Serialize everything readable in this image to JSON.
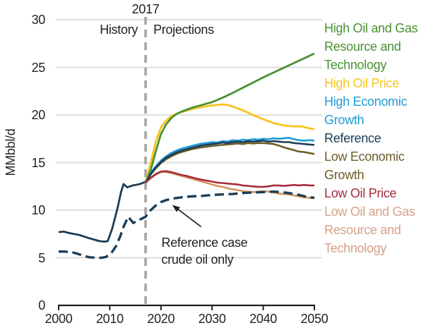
{
  "chart_data": {
    "type": "line",
    "title": "",
    "xlabel": "",
    "ylabel": "MMbbl/d",
    "xlim": [
      2000,
      2050
    ],
    "ylim": [
      0,
      30
    ],
    "x_ticks": [
      "2000",
      "2010",
      "2020",
      "2030",
      "2040",
      "2050"
    ],
    "y_ticks": [
      "0",
      "5",
      "10",
      "15",
      "20",
      "25",
      "30"
    ],
    "grid": "horizontal-only",
    "legend_position": "right",
    "divider": {
      "year": 2017,
      "label": "2017",
      "left": "History",
      "right": "Projections"
    },
    "annotation": {
      "line1": "Reference case",
      "line2": "crude oil only",
      "anchor_year": 2020.1,
      "anchor_value": 7.45,
      "target_year": 2022.2,
      "target_value": 10.55
    },
    "legend": [
      {
        "label": "High Oil and Gas Resource and Technology",
        "color": "#4a9132"
      },
      {
        "label": "High Oil Price",
        "color": "#f7c31e"
      },
      {
        "label": "High Economic Growth",
        "color": "#1f9bd7"
      },
      {
        "label": "Reference",
        "color": "#1c3d56"
      },
      {
        "label": "Low Economic Growth",
        "color": "#6a5e29"
      },
      {
        "label": "Low Oil Price",
        "color": "#a52c3d"
      },
      {
        "label": "Low Oil and Gas Resource and Technology",
        "color": "#d6a186"
      }
    ],
    "series": [
      {
        "name": "History total petroleum and other liquids",
        "color": "#1c3d56",
        "width": 2.8,
        "dashed": false,
        "points": [
          [
            2000,
            7.7
          ],
          [
            2001,
            7.75
          ],
          [
            2002,
            7.6
          ],
          [
            2004,
            7.4
          ],
          [
            2006,
            7.05
          ],
          [
            2007,
            6.9
          ],
          [
            2008,
            6.75
          ],
          [
            2009,
            6.7
          ],
          [
            2009.6,
            6.75
          ],
          [
            2010.5,
            8.1
          ],
          [
            2011.5,
            10.2
          ],
          [
            2012.2,
            11.9
          ],
          [
            2012.7,
            12.75
          ],
          [
            2013.4,
            12.4
          ],
          [
            2014.5,
            12.6
          ],
          [
            2015.5,
            12.7
          ],
          [
            2016.2,
            12.8
          ],
          [
            2017,
            13.0
          ]
        ]
      },
      {
        "name": "High Oil Price",
        "color": "#f7c31e",
        "width": 2.8,
        "dashed": false,
        "points": [
          [
            2017,
            12.9
          ],
          [
            2018,
            15.0
          ],
          [
            2019,
            17.2
          ],
          [
            2020,
            18.7
          ],
          [
            2021,
            19.4
          ],
          [
            2022,
            19.85
          ],
          [
            2023,
            20.1
          ],
          [
            2024,
            20.3
          ],
          [
            2026,
            20.6
          ],
          [
            2028,
            20.85
          ],
          [
            2030,
            21.0
          ],
          [
            2031,
            21.05
          ],
          [
            2032,
            21.1
          ],
          [
            2033,
            21.05
          ],
          [
            2034,
            20.9
          ],
          [
            2036,
            20.5
          ],
          [
            2038,
            20.0
          ],
          [
            2040,
            19.55
          ],
          [
            2042,
            19.15
          ],
          [
            2044,
            18.9
          ],
          [
            2046,
            18.8
          ],
          [
            2047.5,
            18.8
          ],
          [
            2049,
            18.6
          ],
          [
            2050,
            18.5
          ]
        ]
      },
      {
        "name": "High Oil and Gas Resource and Technology",
        "color": "#4a9132",
        "width": 2.8,
        "dashed": false,
        "points": [
          [
            2017,
            12.9
          ],
          [
            2018,
            14.2
          ],
          [
            2019,
            16.2
          ],
          [
            2020,
            18.0
          ],
          [
            2021,
            19.0
          ],
          [
            2022,
            19.65
          ],
          [
            2023,
            20.1
          ],
          [
            2024,
            20.35
          ],
          [
            2026,
            20.75
          ],
          [
            2028,
            21.05
          ],
          [
            2030,
            21.35
          ],
          [
            2032,
            21.8
          ],
          [
            2034,
            22.3
          ],
          [
            2036,
            22.85
          ],
          [
            2038,
            23.4
          ],
          [
            2040,
            23.95
          ],
          [
            2042,
            24.45
          ],
          [
            2044,
            24.95
          ],
          [
            2046,
            25.45
          ],
          [
            2048,
            25.95
          ],
          [
            2050,
            26.45
          ]
        ]
      },
      {
        "name": "Low Economic Growth",
        "color": "#6a5e29",
        "width": 2.6,
        "dashed": false,
        "points": [
          [
            2017,
            12.9
          ],
          [
            2018,
            13.75
          ],
          [
            2019,
            14.4
          ],
          [
            2020,
            14.95
          ],
          [
            2021,
            15.35
          ],
          [
            2022,
            15.65
          ],
          [
            2023,
            15.9
          ],
          [
            2024,
            16.1
          ],
          [
            2026,
            16.4
          ],
          [
            2028,
            16.6
          ],
          [
            2030,
            16.75
          ],
          [
            2032,
            16.85
          ],
          [
            2034,
            16.95
          ],
          [
            2035,
            17.0
          ],
          [
            2036,
            16.95
          ],
          [
            2037,
            17.05
          ],
          [
            2038,
            17.0
          ],
          [
            2039,
            17.05
          ],
          [
            2040,
            17.05
          ],
          [
            2041,
            17.0
          ],
          [
            2042,
            16.95
          ],
          [
            2043,
            16.8
          ],
          [
            2044,
            16.6
          ],
          [
            2045,
            16.45
          ],
          [
            2046,
            16.3
          ],
          [
            2047,
            16.15
          ],
          [
            2048,
            16.1
          ],
          [
            2049,
            16.0
          ],
          [
            2050,
            15.9
          ]
        ]
      },
      {
        "name": "High Economic Growth",
        "color": "#1f9bd7",
        "width": 2.6,
        "dashed": false,
        "points": [
          [
            2017,
            12.9
          ],
          [
            2018,
            13.9
          ],
          [
            2019,
            14.6
          ],
          [
            2020,
            15.2
          ],
          [
            2021,
            15.65
          ],
          [
            2022,
            16.0
          ],
          [
            2023,
            16.25
          ],
          [
            2024,
            16.45
          ],
          [
            2026,
            16.75
          ],
          [
            2028,
            17.0
          ],
          [
            2029,
            17.05
          ],
          [
            2030,
            17.15
          ],
          [
            2031,
            17.1
          ],
          [
            2032,
            17.25
          ],
          [
            2033,
            17.2
          ],
          [
            2034,
            17.35
          ],
          [
            2035,
            17.3
          ],
          [
            2036,
            17.4
          ],
          [
            2037,
            17.35
          ],
          [
            2038,
            17.45
          ],
          [
            2039,
            17.4
          ],
          [
            2040,
            17.5
          ],
          [
            2041,
            17.45
          ],
          [
            2042,
            17.55
          ],
          [
            2043,
            17.5
          ],
          [
            2044,
            17.55
          ],
          [
            2045,
            17.6
          ],
          [
            2046,
            17.45
          ],
          [
            2047,
            17.35
          ],
          [
            2048,
            17.3
          ],
          [
            2049,
            17.35
          ],
          [
            2050,
            17.3
          ]
        ]
      },
      {
        "name": "Reference",
        "color": "#1c3d56",
        "width": 2.6,
        "dashed": false,
        "points": [
          [
            2017,
            12.9
          ],
          [
            2018,
            13.8
          ],
          [
            2019,
            14.5
          ],
          [
            2020,
            15.05
          ],
          [
            2021,
            15.5
          ],
          [
            2022,
            15.8
          ],
          [
            2023,
            16.05
          ],
          [
            2024,
            16.25
          ],
          [
            2026,
            16.55
          ],
          [
            2028,
            16.8
          ],
          [
            2030,
            16.95
          ],
          [
            2031,
            17.0
          ],
          [
            2032,
            17.1
          ],
          [
            2033,
            17.05
          ],
          [
            2034,
            17.15
          ],
          [
            2035,
            17.2
          ],
          [
            2036,
            17.15
          ],
          [
            2037,
            17.25
          ],
          [
            2038,
            17.2
          ],
          [
            2039,
            17.25
          ],
          [
            2040,
            17.3
          ],
          [
            2041,
            17.2
          ],
          [
            2042,
            17.25
          ],
          [
            2043,
            17.2
          ],
          [
            2044,
            17.15
          ],
          [
            2045,
            17.15
          ],
          [
            2046,
            17.05
          ],
          [
            2047,
            17.0
          ],
          [
            2048,
            16.95
          ],
          [
            2049,
            16.9
          ],
          [
            2050,
            16.85
          ]
        ]
      },
      {
        "name": "Low Oil and Gas Resource and Technology",
        "color": "#d2955c",
        "width": 2.6,
        "dashed": false,
        "points": [
          [
            2017,
            12.9
          ],
          [
            2018,
            13.35
          ],
          [
            2019,
            13.75
          ],
          [
            2020,
            14.0
          ],
          [
            2021,
            14.0
          ],
          [
            2022,
            13.9
          ],
          [
            2023,
            13.75
          ],
          [
            2024,
            13.6
          ],
          [
            2025,
            13.45
          ],
          [
            2026,
            13.3
          ],
          [
            2027,
            13.15
          ],
          [
            2028,
            13.0
          ],
          [
            2029,
            12.85
          ],
          [
            2030,
            12.7
          ],
          [
            2031,
            12.55
          ],
          [
            2032,
            12.45
          ],
          [
            2033,
            12.3
          ],
          [
            2034,
            12.2
          ],
          [
            2035,
            12.1
          ],
          [
            2036,
            12.0
          ],
          [
            2037,
            11.95
          ],
          [
            2038,
            11.9
          ],
          [
            2039,
            11.95
          ],
          [
            2040,
            12.0
          ],
          [
            2041,
            11.95
          ],
          [
            2042,
            11.85
          ],
          [
            2043,
            11.75
          ],
          [
            2044,
            11.7
          ],
          [
            2045,
            11.65
          ],
          [
            2046,
            11.55
          ],
          [
            2047,
            11.45
          ],
          [
            2048,
            11.35
          ],
          [
            2049,
            11.3
          ],
          [
            2050,
            11.25
          ]
        ]
      },
      {
        "name": "Low Oil Price",
        "color": "#a52c3d",
        "width": 2.6,
        "dashed": false,
        "points": [
          [
            2017,
            12.9
          ],
          [
            2018,
            13.4
          ],
          [
            2019,
            13.8
          ],
          [
            2020,
            14.05
          ],
          [
            2021,
            14.1
          ],
          [
            2022,
            14.0
          ],
          [
            2023,
            13.85
          ],
          [
            2024,
            13.7
          ],
          [
            2025,
            13.6
          ],
          [
            2026,
            13.45
          ],
          [
            2027,
            13.3
          ],
          [
            2028,
            13.2
          ],
          [
            2029,
            13.1
          ],
          [
            2030,
            13.0
          ],
          [
            2031,
            12.9
          ],
          [
            2032,
            12.85
          ],
          [
            2033,
            12.8
          ],
          [
            2034,
            12.75
          ],
          [
            2035,
            12.7
          ],
          [
            2036,
            12.6
          ],
          [
            2037,
            12.55
          ],
          [
            2038,
            12.5
          ],
          [
            2039,
            12.45
          ],
          [
            2040,
            12.45
          ],
          [
            2041,
            12.5
          ],
          [
            2042,
            12.6
          ],
          [
            2043,
            12.6
          ],
          [
            2044,
            12.55
          ],
          [
            2045,
            12.6
          ],
          [
            2046,
            12.65
          ],
          [
            2047,
            12.6
          ],
          [
            2048,
            12.65
          ],
          [
            2049,
            12.6
          ],
          [
            2050,
            12.6
          ]
        ]
      },
      {
        "name": "Reference case crude oil only",
        "color": "#1c3d56",
        "width": 3.4,
        "dashed": true,
        "points": [
          [
            2000,
            5.65
          ],
          [
            2001,
            5.65
          ],
          [
            2002.5,
            5.6
          ],
          [
            2003.5,
            5.45
          ],
          [
            2005,
            5.2
          ],
          [
            2006,
            5.05
          ],
          [
            2007.5,
            5.0
          ],
          [
            2008.5,
            5.0
          ],
          [
            2009.3,
            5.1
          ],
          [
            2010.3,
            5.5
          ],
          [
            2011.2,
            6.2
          ],
          [
            2012,
            7.2
          ],
          [
            2012.8,
            8.4
          ],
          [
            2013.6,
            9.3
          ],
          [
            2014.6,
            8.65
          ],
          [
            2015.6,
            8.95
          ],
          [
            2017,
            9.3
          ],
          [
            2018,
            10.0
          ],
          [
            2019,
            10.5
          ],
          [
            2020,
            10.85
          ],
          [
            2021,
            11.05
          ],
          [
            2022,
            11.2
          ],
          [
            2024,
            11.35
          ],
          [
            2026,
            11.45
          ],
          [
            2028,
            11.5
          ],
          [
            2030,
            11.6
          ],
          [
            2032,
            11.65
          ],
          [
            2034,
            11.7
          ],
          [
            2036,
            11.8
          ],
          [
            2038,
            11.85
          ],
          [
            2040,
            11.9
          ],
          [
            2042,
            11.95
          ],
          [
            2043.5,
            11.9
          ],
          [
            2045,
            11.8
          ],
          [
            2047,
            11.6
          ],
          [
            2048.5,
            11.4
          ],
          [
            2050,
            11.3
          ]
        ]
      }
    ]
  }
}
